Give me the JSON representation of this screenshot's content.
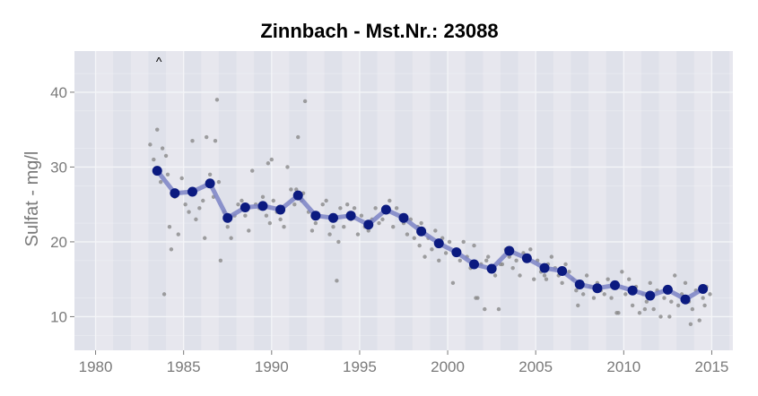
{
  "chart_data": {
    "type": "scatter",
    "title": "Zinnbach   -   Mst.Nr.:  23088",
    "xlabel": "",
    "ylabel": "Sulfat  -  mg/l",
    "xlim": [
      1978.8,
      2016.2
    ],
    "ylim": [
      5.5,
      45.5
    ],
    "x_ticks": [
      1980,
      1985,
      1990,
      1995,
      2000,
      2005,
      2010,
      2015
    ],
    "y_ticks": [
      10,
      20,
      30,
      40
    ],
    "x_tick_labels": [
      "1980",
      "1985",
      "1990",
      "1995",
      "2000",
      "2005",
      "2010",
      "2015"
    ],
    "y_tick_labels": [
      "10",
      "20",
      "30",
      "40"
    ],
    "grid": true,
    "legend": "none",
    "annotations": [
      {
        "text": "^",
        "x": 1983.6,
        "y": 43.5
      }
    ],
    "colors": {
      "panel_background": "#dfe1ea",
      "panel_band_light": "#e9eaf0",
      "grid": "#f4f5f8",
      "points": "#8a8a8a",
      "trend_line": "#7b82c6",
      "annual_means": "#0b1a80"
    },
    "series": [
      {
        "type": "line",
        "x": [
          1983.5,
          1984.5,
          1985.5,
          1986.5,
          1987.5,
          1988.5,
          1989.5,
          1990.5,
          1991.5,
          1992.5,
          1993.5,
          1994.5,
          1995.5,
          1996.5,
          1997.5,
          1998.5,
          1999.5,
          2000.5,
          2001.5,
          2002.5,
          2003.5,
          2004.5,
          2005.5,
          2006.5,
          2007.5,
          2008.5,
          2009.5,
          2010.5,
          2011.5,
          2012.5,
          2013.5,
          2014.5
        ],
        "y": [
          29.5,
          26.5,
          26.7,
          27.8,
          23.2,
          24.6,
          24.8,
          24.3,
          26.2,
          23.5,
          23.2,
          23.5,
          22.3,
          24.3,
          23.2,
          21.4,
          19.8,
          18.6,
          17.0,
          16.4,
          18.8,
          17.8,
          16.5,
          16.1,
          14.3,
          13.8,
          14.2,
          13.5,
          12.8,
          13.6,
          12.3,
          13.7
        ]
      },
      {
        "type": "scatter",
        "marker": "large",
        "x": [
          1983.5,
          1984.5,
          1985.5,
          1986.5,
          1987.5,
          1988.5,
          1989.5,
          1990.5,
          1991.5,
          1992.5,
          1993.5,
          1994.5,
          1995.5,
          1996.5,
          1997.5,
          1998.5,
          1999.5,
          2000.5,
          2001.5,
          2002.5,
          2003.5,
          2004.5,
          2005.5,
          2006.5,
          2007.5,
          2008.5,
          2009.5,
          2010.5,
          2011.5,
          2012.5,
          2013.5,
          2014.5
        ],
        "y": [
          29.5,
          26.5,
          26.7,
          27.8,
          23.2,
          24.6,
          24.8,
          24.3,
          26.2,
          23.5,
          23.2,
          23.5,
          22.3,
          24.3,
          23.2,
          21.4,
          19.8,
          18.6,
          17.0,
          16.4,
          18.8,
          17.8,
          16.5,
          16.1,
          14.3,
          13.8,
          14.2,
          13.5,
          12.8,
          13.6,
          12.3,
          13.7
        ]
      },
      {
        "type": "scatter",
        "marker": "small",
        "x": [
          1983.1,
          1983.3,
          1983.5,
          1983.7,
          1983.9,
          1984.1,
          1984.3,
          1984.5,
          1984.7,
          1984.9,
          1985.1,
          1985.3,
          1985.5,
          1985.7,
          1985.9,
          1986.1,
          1986.3,
          1986.5,
          1986.7,
          1986.9,
          1987.1,
          1987.3,
          1987.5,
          1987.7,
          1987.9,
          1988.1,
          1988.3,
          1988.5,
          1988.7,
          1988.9,
          1989.1,
          1989.3,
          1989.5,
          1989.7,
          1989.9,
          1990.1,
          1990.3,
          1990.5,
          1990.7,
          1990.9,
          1991.1,
          1991.3,
          1991.5,
          1991.7,
          1991.9,
          1992.1,
          1992.3,
          1992.5,
          1992.7,
          1992.9,
          1993.1,
          1993.3,
          1993.5,
          1993.7,
          1993.9,
          1994.1,
          1994.3,
          1994.5,
          1994.7,
          1994.9,
          1995.1,
          1995.3,
          1995.5,
          1995.7,
          1995.9,
          1996.1,
          1996.3,
          1996.5,
          1996.7,
          1996.9,
          1997.1,
          1997.3,
          1997.5,
          1997.7,
          1997.9,
          1998.1,
          1998.3,
          1998.5,
          1998.7,
          1998.9,
          1999.1,
          1999.3,
          1999.5,
          1999.7,
          1999.9,
          2000.1,
          2000.3,
          2000.5,
          2000.7,
          2000.9,
          2001.1,
          2001.3,
          2001.5,
          2001.7,
          2001.9,
          2002.1,
          2002.3,
          2002.5,
          2002.7,
          2002.9,
          2003.1,
          2003.3,
          2003.5,
          2003.7,
          2003.9,
          2004.1,
          2004.3,
          2004.5,
          2004.7,
          2004.9,
          2005.1,
          2005.3,
          2005.5,
          2005.7,
          2005.9,
          2006.1,
          2006.3,
          2006.5,
          2006.7,
          2006.9,
          2007.1,
          2007.3,
          2007.5,
          2007.7,
          2007.9,
          2008.1,
          2008.3,
          2008.5,
          2008.7,
          2008.9,
          2009.1,
          2009.3,
          2009.5,
          2009.7,
          2009.9,
          2010.1,
          2010.3,
          2010.5,
          2010.7,
          2010.9,
          2011.1,
          2011.3,
          2011.5,
          2011.7,
          2011.9,
          2012.1,
          2012.3,
          2012.5,
          2012.7,
          2012.9,
          2013.1,
          2013.3,
          2013.5,
          2013.7,
          2013.9,
          2014.1,
          2014.3,
          2014.5,
          2014.7,
          2014.9,
          1983.8,
          1984.0,
          1984.2,
          1986.2,
          1986.8,
          1987.0,
          1989.8,
          1990.0,
          1991.4,
          1991.8,
          1993.8,
          1998.4,
          2001.6,
          2002.2,
          2003.0,
          2005.6,
          2007.4,
          2009.6,
          2011.2,
          2012.6,
          2013.8,
          2014.6
        ],
        "y": [
          33.0,
          31.0,
          35.0,
          28.0,
          13.0,
          29.0,
          19.0,
          26.0,
          21.0,
          28.5,
          25.0,
          24.0,
          33.5,
          23.0,
          24.5,
          25.5,
          34.0,
          29.0,
          26.0,
          39.0,
          17.5,
          24.0,
          22.0,
          20.5,
          23.5,
          25.0,
          25.5,
          23.5,
          21.5,
          29.5,
          25.0,
          24.5,
          26.0,
          23.5,
          22.5,
          25.5,
          24.0,
          23.0,
          22.0,
          30.0,
          27.0,
          25.0,
          34.0,
          25.5,
          38.8,
          24.0,
          21.5,
          22.5,
          23.5,
          25.0,
          25.5,
          21.0,
          22.0,
          14.8,
          24.5,
          22.0,
          25.0,
          23.0,
          24.5,
          21.0,
          23.5,
          22.0,
          21.5,
          23.0,
          24.5,
          22.5,
          23.0,
          24.0,
          25.5,
          22.0,
          24.5,
          23.5,
          22.5,
          21.0,
          23.0,
          20.5,
          22.0,
          22.5,
          18.0,
          20.5,
          19.0,
          21.5,
          17.5,
          20.5,
          18.5,
          20.0,
          14.5,
          19.0,
          17.5,
          20.0,
          18.0,
          16.5,
          19.5,
          12.5,
          17.0,
          11.0,
          18.0,
          16.5,
          15.5,
          11.0,
          17.0,
          19.0,
          18.0,
          16.5,
          17.5,
          15.5,
          18.5,
          17.5,
          19.0,
          15.0,
          17.5,
          16.0,
          15.5,
          17.0,
          18.0,
          16.5,
          15.5,
          14.5,
          17.0,
          16.0,
          15.0,
          13.5,
          14.5,
          13.0,
          15.5,
          14.0,
          12.5,
          14.5,
          13.5,
          13.0,
          15.0,
          12.5,
          14.0,
          10.5,
          16.0,
          13.0,
          15.0,
          11.5,
          14.0,
          10.5,
          13.0,
          12.0,
          14.5,
          11.0,
          13.5,
          10.0,
          12.5,
          14.0,
          12.0,
          15.5,
          11.5,
          13.0,
          14.5,
          12.0,
          11.0,
          13.5,
          9.5,
          12.5,
          14.0,
          13.0,
          32.5,
          31.5,
          22.0,
          20.5,
          33.5,
          28.0,
          30.5,
          31.0,
          27.0,
          26.5,
          20.0,
          19.5,
          12.5,
          17.5,
          17.0,
          15.0,
          11.5,
          10.5,
          11.0,
          10.0,
          9.0,
          11.5
        ]
      }
    ]
  }
}
